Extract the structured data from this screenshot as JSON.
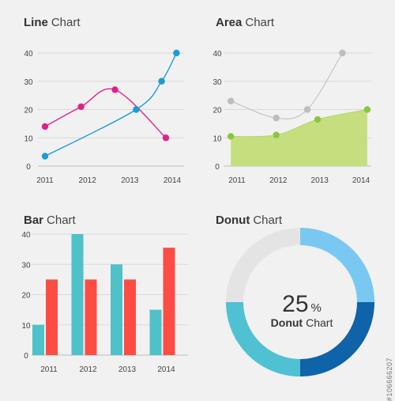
{
  "colors": {
    "line_pink": "#e0218a",
    "line_blue": "#1b9bd7",
    "area_fill": "#c5df7f",
    "area_points": "#8cc63f",
    "area_gray": "#bdbdbd",
    "bar_teal": "#4fc1c9",
    "bar_red": "#fd4c44",
    "donut_light_blue": "#79c8f1",
    "donut_dark_blue": "#0f63a8",
    "donut_teal": "#4fc1d2",
    "donut_gray": "#e4e4e4"
  },
  "watermark": "#106666207",
  "chart_data": [
    {
      "type": "line",
      "title_bold": "Line",
      "title_rest": "Chart",
      "x_ticks": [
        "2011",
        "2012",
        "2013",
        "2014"
      ],
      "y_ticks": [
        "0",
        "10",
        "20",
        "30",
        "40"
      ],
      "ylim": [
        0,
        40
      ],
      "xlim": [
        2011,
        2014
      ],
      "grid": true,
      "series": [
        {
          "color_key": "line_pink",
          "points": [
            [
              2011,
              14
            ],
            [
              2011.85,
              21
            ],
            [
              2012.65,
              27
            ],
            [
              2013.85,
              10
            ]
          ]
        },
        {
          "color_key": "line_blue",
          "points": [
            [
              2011,
              3.5
            ],
            [
              2013.15,
              20
            ],
            [
              2013.75,
              30
            ],
            [
              2014.1,
              40
            ]
          ]
        }
      ]
    },
    {
      "type": "area",
      "title_bold": "Area",
      "title_rest": "Chart",
      "x_ticks": [
        "2011",
        "2012",
        "2013",
        "2014"
      ],
      "y_ticks": [
        "0",
        "10",
        "20",
        "30",
        "40"
      ],
      "ylim": [
        0,
        40
      ],
      "xlim": [
        2011,
        2014
      ],
      "grid": true,
      "series": [
        {
          "color_key": "area_gray",
          "kind": "line",
          "points": [
            [
              2010.85,
              23
            ],
            [
              2011.95,
              17
            ],
            [
              2012.7,
              20
            ],
            [
              2013.55,
              40
            ]
          ]
        },
        {
          "color_key": "area_points",
          "kind": "area",
          "points": [
            [
              2010.85,
              10.5
            ],
            [
              2011.95,
              11
            ],
            [
              2012.95,
              16.5
            ],
            [
              2014.15,
              20
            ]
          ]
        }
      ]
    },
    {
      "type": "bar",
      "title_bold": "Bar",
      "title_rest": "Chart",
      "categories": [
        "2011",
        "2012",
        "2013",
        "2014"
      ],
      "y_ticks": [
        "0",
        "10",
        "20",
        "30",
        "40"
      ],
      "ylim": [
        0,
        40
      ],
      "grid": true,
      "series": [
        {
          "color_key": "bar_teal",
          "values": [
            10,
            40,
            30,
            15
          ]
        },
        {
          "color_key": "bar_red",
          "values": [
            25,
            25,
            25,
            35.5
          ]
        }
      ]
    },
    {
      "type": "pie",
      "title_bold": "Donut",
      "title_rest": "Chart",
      "center_value": "25",
      "center_unit": "%",
      "center_label_bold": "Donut",
      "center_label_rest": "Chart",
      "slices": [
        {
          "color_key": "donut_light_blue",
          "value": 25
        },
        {
          "color_key": "donut_dark_blue",
          "value": 25
        },
        {
          "color_key": "donut_teal",
          "value": 25
        },
        {
          "color_key": "donut_gray",
          "value": 25
        }
      ]
    }
  ]
}
